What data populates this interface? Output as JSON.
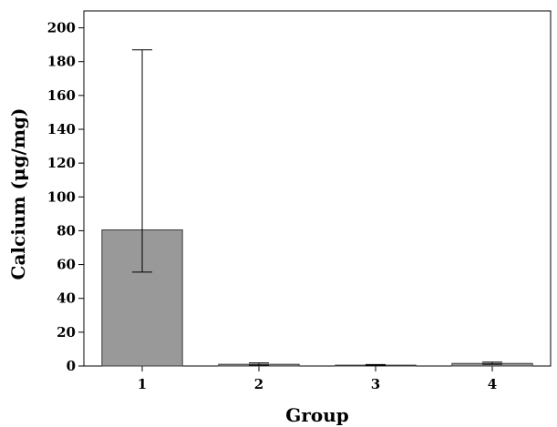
{
  "chart_data": {
    "type": "bar",
    "categories": [
      "1",
      "2",
      "3",
      "4"
    ],
    "values": [
      80.5,
      1.0,
      0.5,
      1.5
    ],
    "error_low": [
      55.5,
      0.5,
      0.2,
      1.0
    ],
    "error_high": [
      187,
      1.8,
      0.9,
      2.3
    ],
    "title": "",
    "xlabel": "Group",
    "ylabel": "Calcium (μg/mg)",
    "ylim": [
      0,
      210
    ],
    "yticks": [
      0,
      20,
      40,
      60,
      80,
      100,
      120,
      140,
      160,
      180,
      200
    ],
    "grid": false,
    "colors": {
      "bar_fill": "#999999",
      "bar_stroke": "#3a3a3a",
      "axis": "#000000"
    }
  }
}
